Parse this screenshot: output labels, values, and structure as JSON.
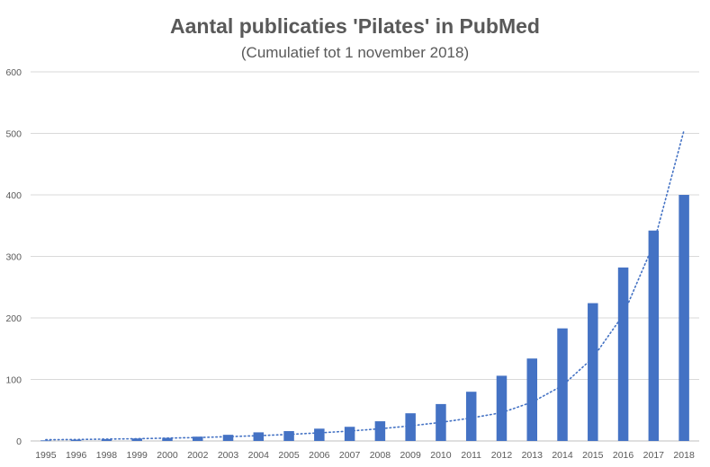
{
  "chart_data": {
    "type": "bar",
    "title": "Aantal publicaties 'Pilates' in PubMed",
    "subtitle": "(Cumulatief tot 1 november 2018)",
    "xlabel": "",
    "ylabel": "",
    "ylim": [
      0,
      600
    ],
    "yticks": [
      0,
      100,
      200,
      300,
      400,
      500,
      600
    ],
    "grid": true,
    "legend": "none",
    "categories": [
      "1995",
      "1996",
      "1998",
      "1999",
      "2000",
      "2002",
      "2003",
      "2004",
      "2005",
      "2006",
      "2007",
      "2008",
      "2009",
      "2010",
      "2011",
      "2012",
      "2013",
      "2014",
      "2015",
      "2016",
      "2017",
      "2018"
    ],
    "values": [
      1,
      2,
      3,
      4,
      5,
      7,
      10,
      14,
      16,
      20,
      23,
      32,
      45,
      60,
      80,
      106,
      134,
      183,
      224,
      282,
      342,
      400
    ],
    "trendline": {
      "type": "exponential",
      "style": "dotted",
      "values": [
        2.0,
        2.4,
        3.0,
        3.7,
        4.6,
        5.6,
        7.0,
        8.6,
        10.6,
        13.1,
        16.1,
        19.9,
        24.5,
        30.2,
        37.3,
        46.0,
        63.0,
        90.0,
        135.0,
        205.0,
        320.0,
        505.0
      ]
    },
    "colors": {
      "bar": "#4472C4",
      "trendline": "#4472C4",
      "grid": "#D9D9D9",
      "text": "#595959"
    }
  }
}
